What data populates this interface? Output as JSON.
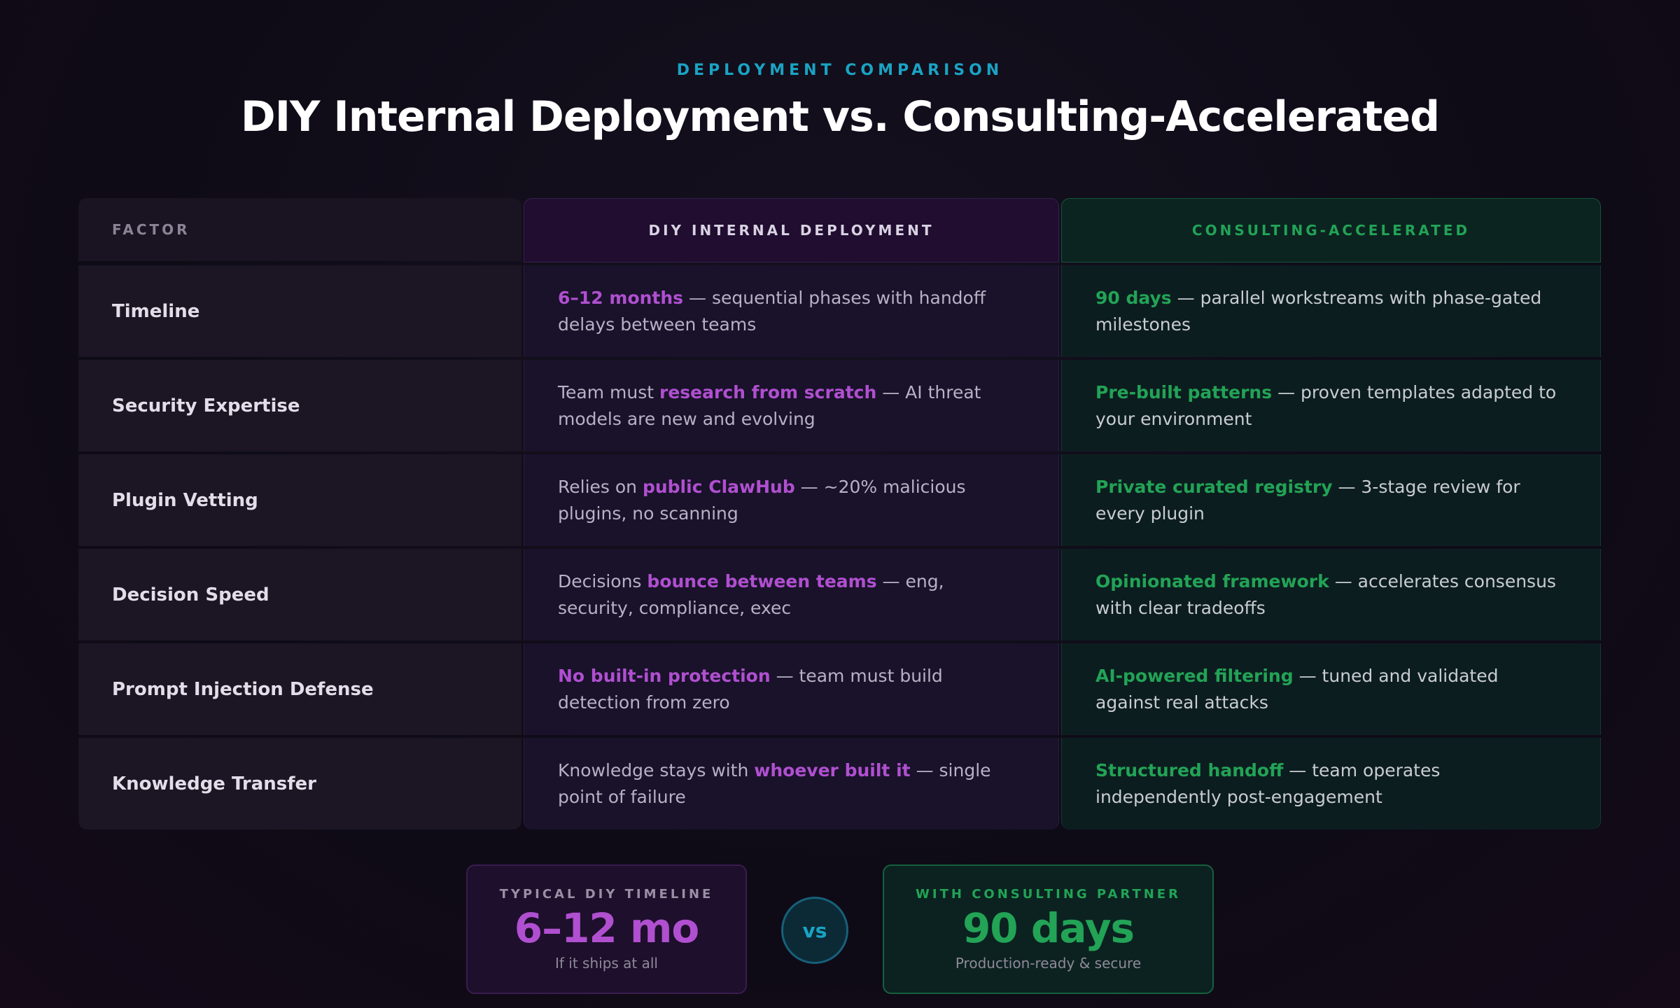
{
  "header": {
    "eyebrow": "DEPLOYMENT COMPARISON",
    "title": "DIY Internal Deployment vs. Consulting-Accelerated"
  },
  "table": {
    "headers": [
      "FACTOR",
      "DIY INTERNAL DEPLOYMENT",
      "CONSULTING-ACCELERATED"
    ],
    "rows": [
      {
        "factor": "Timeline",
        "diy": {
          "em": "6–12 months",
          "rest": "— sequential phases with handoff delays between teams"
        },
        "consulting": {
          "em": "90 days",
          "rest": "— parallel workstreams with phase-gated milestones"
        }
      },
      {
        "factor": "Security Expertise",
        "diy": {
          "lead": "Team must",
          "em": "research from scratch",
          "rest": "— AI threat models are new and evolving"
        },
        "consulting": {
          "em": "Pre-built patterns",
          "rest": "— proven templates adapted to your environment"
        }
      },
      {
        "factor": "Plugin Vetting",
        "diy": {
          "lead": "Relies on",
          "em": "public ClawHub",
          "rest": "— ~20% malicious plugins, no scanning"
        },
        "consulting": {
          "em": "Private curated registry",
          "rest": "— 3-stage review for every plugin"
        }
      },
      {
        "factor": "Decision Speed",
        "diy": {
          "lead": "Decisions",
          "em": "bounce between teams",
          "rest": "— eng, security, compliance, exec"
        },
        "consulting": {
          "em": "Opinionated framework",
          "rest": "— accelerates consensus with clear tradeoffs"
        }
      },
      {
        "factor": "Prompt Injection Defense",
        "diy": {
          "em": "No built-in protection",
          "rest": "— team must build detection from zero"
        },
        "consulting": {
          "em": "AI-powered filtering",
          "rest": "— tuned and validated against real attacks"
        }
      },
      {
        "factor": "Knowledge Transfer",
        "diy": {
          "lead": "Knowledge stays with",
          "em": "whoever built it",
          "rest": "— single point of failure"
        },
        "consulting": {
          "em": "Structured handoff",
          "rest": "— team operates independently post-engagement"
        }
      }
    ]
  },
  "summary": {
    "diy": {
      "label": "TYPICAL DIY TIMELINE",
      "value": "6–12 mo",
      "note": "If it ships at all"
    },
    "vs": "vs",
    "consulting": {
      "label": "WITH CONSULTING PARTNER",
      "value": "90 days",
      "note": "Production-ready & secure"
    }
  }
}
